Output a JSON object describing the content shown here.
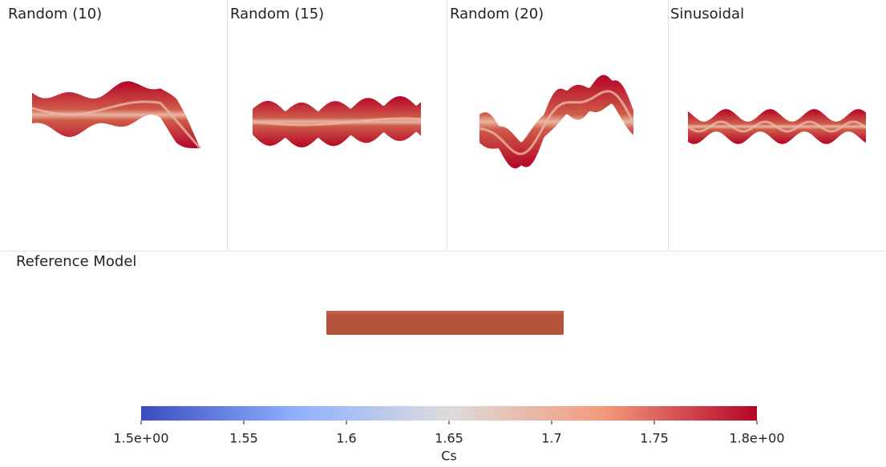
{
  "panels": [
    {
      "title": "Random (10)"
    },
    {
      "title": "Random (15)"
    },
    {
      "title": "Random (20)"
    },
    {
      "title": "Sinusoidal"
    }
  ],
  "reference": {
    "title": "Reference Model"
  },
  "colorbar": {
    "label": "Cs",
    "lim": [
      1.5,
      1.8
    ],
    "ticks": [
      {
        "value": 1.5,
        "label": "1.5e+00"
      },
      1.55,
      1.6,
      1.65,
      1.7,
      1.75,
      {
        "value": 1.8,
        "label": "1.8e+00"
      }
    ]
  }
}
